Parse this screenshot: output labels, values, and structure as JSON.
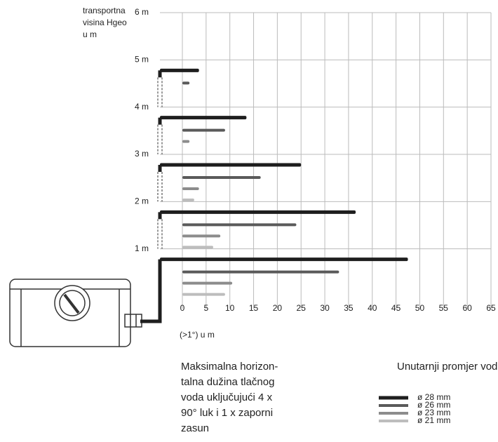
{
  "chart_data": {
    "type": "bar",
    "orientation": "horizontal",
    "ylabel": [
      "transportna",
      "visina Hgeo",
      "u m"
    ],
    "xlabel": "(>1°) u m",
    "note": [
      "Maksimalna horizon-",
      "talna dužina tlačnog",
      "voda uključujući 4 x",
      "90° luk i 1 x zaporni",
      "zasun"
    ],
    "legend_title": "Unutarnji promjer voda",
    "series": [
      {
        "name": "ø 28 mm",
        "color": "#1e1e1e",
        "values": [
          47.5,
          36.5,
          25,
          13.5,
          3.5
        ]
      },
      {
        "name": "ø 26 mm",
        "color": "#5a5a5a",
        "values": [
          33,
          24,
          16.5,
          9,
          1.5
        ]
      },
      {
        "name": "ø 23 mm",
        "color": "#8c8c8c",
        "values": [
          10.5,
          8,
          3.5,
          1.5,
          null
        ]
      },
      {
        "name": "ø 21 mm",
        "color": "#bdbdbd",
        "values": [
          9,
          6.5,
          2.5,
          null,
          null
        ]
      }
    ],
    "xlim": [
      0,
      65
    ],
    "xticks": [
      0,
      5,
      10,
      15,
      20,
      25,
      30,
      35,
      40,
      45,
      50,
      55,
      60,
      65
    ],
    "ylim": [
      0,
      6
    ],
    "yticks": [
      {
        "value": 1,
        "label": "1 m"
      },
      {
        "value": 2,
        "label": "2 m"
      },
      {
        "value": 3,
        "label": "3 m"
      },
      {
        "value": 4,
        "label": "4 m"
      },
      {
        "value": 5,
        "label": "5 m"
      },
      {
        "value": 6,
        "label": "6 m"
      }
    ],
    "grid": true
  }
}
